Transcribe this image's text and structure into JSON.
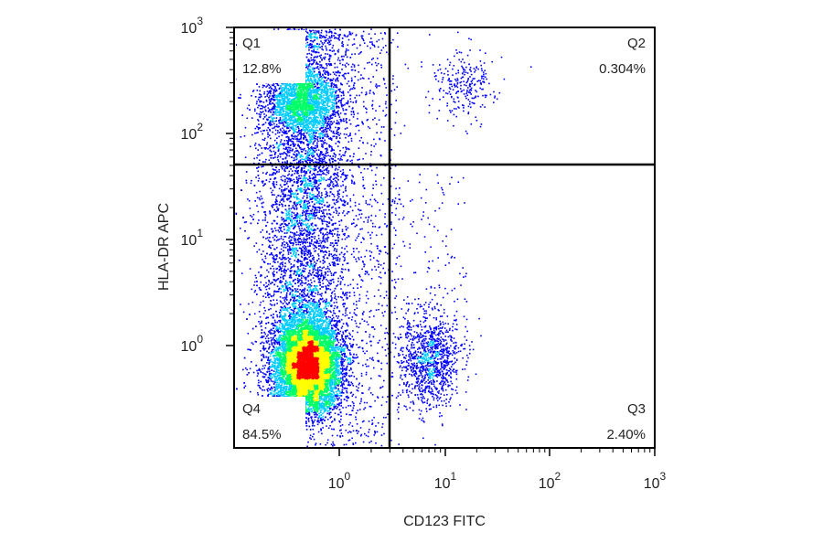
{
  "chart_data": {
    "type": "scatter",
    "title": "",
    "xlabel": "CD123 FITC",
    "ylabel": "HLA-DR APC",
    "x_scale": "biexponential",
    "y_scale": "biexponential",
    "x_ticks": [
      {
        "base": "10",
        "exp": "0",
        "value": 1
      },
      {
        "base": "10",
        "exp": "1",
        "value": 10
      },
      {
        "base": "10",
        "exp": "2",
        "value": 100
      },
      {
        "base": "10",
        "exp": "3",
        "value": 1000
      }
    ],
    "y_ticks": [
      {
        "base": "10",
        "exp": "0",
        "value": 1
      },
      {
        "base": "10",
        "exp": "1",
        "value": 10
      },
      {
        "base": "10",
        "exp": "2",
        "value": 100
      },
      {
        "base": "10",
        "exp": "3",
        "value": 1000
      }
    ],
    "gate": {
      "x": 2.4,
      "y": 50
    },
    "quadrants": [
      {
        "name": "Q1",
        "percent": "12.8%",
        "position": "top-left"
      },
      {
        "name": "Q2",
        "percent": "0.304%",
        "position": "top-right"
      },
      {
        "name": "Q3",
        "percent": "2.40%",
        "position": "bottom-right"
      },
      {
        "name": "Q4",
        "percent": "84.5%",
        "position": "bottom-left"
      }
    ],
    "density_colors": [
      "#0000ff",
      "#00ccff",
      "#00ff66",
      "#ffff00",
      "#ff0000"
    ],
    "populations": [
      {
        "x_center": 0.3,
        "y_center": 0.5,
        "share": 0.845
      },
      {
        "x_center": 0.25,
        "y_center": 200,
        "share": 0.128
      },
      {
        "x_center": 7,
        "y_center": 0.6,
        "share": 0.024
      },
      {
        "x_center": 15,
        "y_center": 300,
        "share": 0.003
      }
    ]
  }
}
